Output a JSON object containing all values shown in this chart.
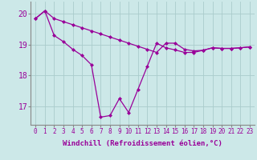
{
  "xlabel": "Windchill (Refroidissement éolien,°C)",
  "x": [
    0,
    1,
    2,
    3,
    4,
    5,
    6,
    7,
    8,
    9,
    10,
    11,
    12,
    13,
    14,
    15,
    16,
    17,
    18,
    19,
    20,
    21,
    22,
    23
  ],
  "line1": [
    19.85,
    20.1,
    19.85,
    19.75,
    19.65,
    19.55,
    19.45,
    19.35,
    19.25,
    19.15,
    19.05,
    18.95,
    18.85,
    18.75,
    19.05,
    19.05,
    18.85,
    18.8,
    18.82,
    18.9,
    18.88,
    18.88,
    18.9,
    18.93
  ],
  "line2": [
    19.85,
    20.1,
    19.3,
    19.1,
    18.85,
    18.65,
    18.35,
    16.65,
    16.7,
    17.25,
    16.8,
    17.55,
    18.3,
    19.05,
    18.9,
    18.83,
    18.75,
    18.75,
    18.82,
    18.9,
    18.88,
    18.88,
    18.9,
    18.93
  ],
  "ylim": [
    16.4,
    20.4
  ],
  "yticks": [
    17,
    18,
    19,
    20
  ],
  "xticks": [
    0,
    1,
    2,
    3,
    4,
    5,
    6,
    7,
    8,
    9,
    10,
    11,
    12,
    13,
    14,
    15,
    16,
    17,
    18,
    19,
    20,
    21,
    22,
    23
  ],
  "line_color": "#990099",
  "bg_color": "#cce8e8",
  "grid_color": "#aacccc",
  "marker": "D",
  "marker_size": 2.0,
  "line_width": 0.9,
  "tick_label_fontsize": 5.5,
  "xlabel_fontsize": 6.5
}
